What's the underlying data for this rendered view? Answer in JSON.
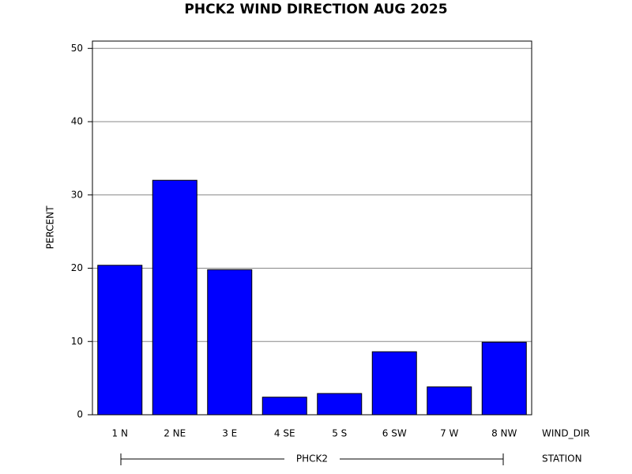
{
  "chart_data": {
    "type": "bar",
    "title": "PHCK2 WIND DIRECTION AUG 2025",
    "y_label": "PERCENT",
    "x_label": "WIND_DIR",
    "group_label": "STATION",
    "group": "PHCK2",
    "categories": [
      "1 N",
      "2 NE",
      "3 E",
      "4 SE",
      "5 S",
      "6 SW",
      "7 W",
      "8 NW"
    ],
    "values": [
      20.4,
      32.0,
      19.8,
      2.4,
      2.9,
      8.6,
      3.8,
      9.9
    ],
    "color": "#0000ff",
    "ylim": [
      0,
      51
    ],
    "yticks": [
      0,
      10,
      20,
      30,
      40,
      50
    ],
    "grid": true
  }
}
